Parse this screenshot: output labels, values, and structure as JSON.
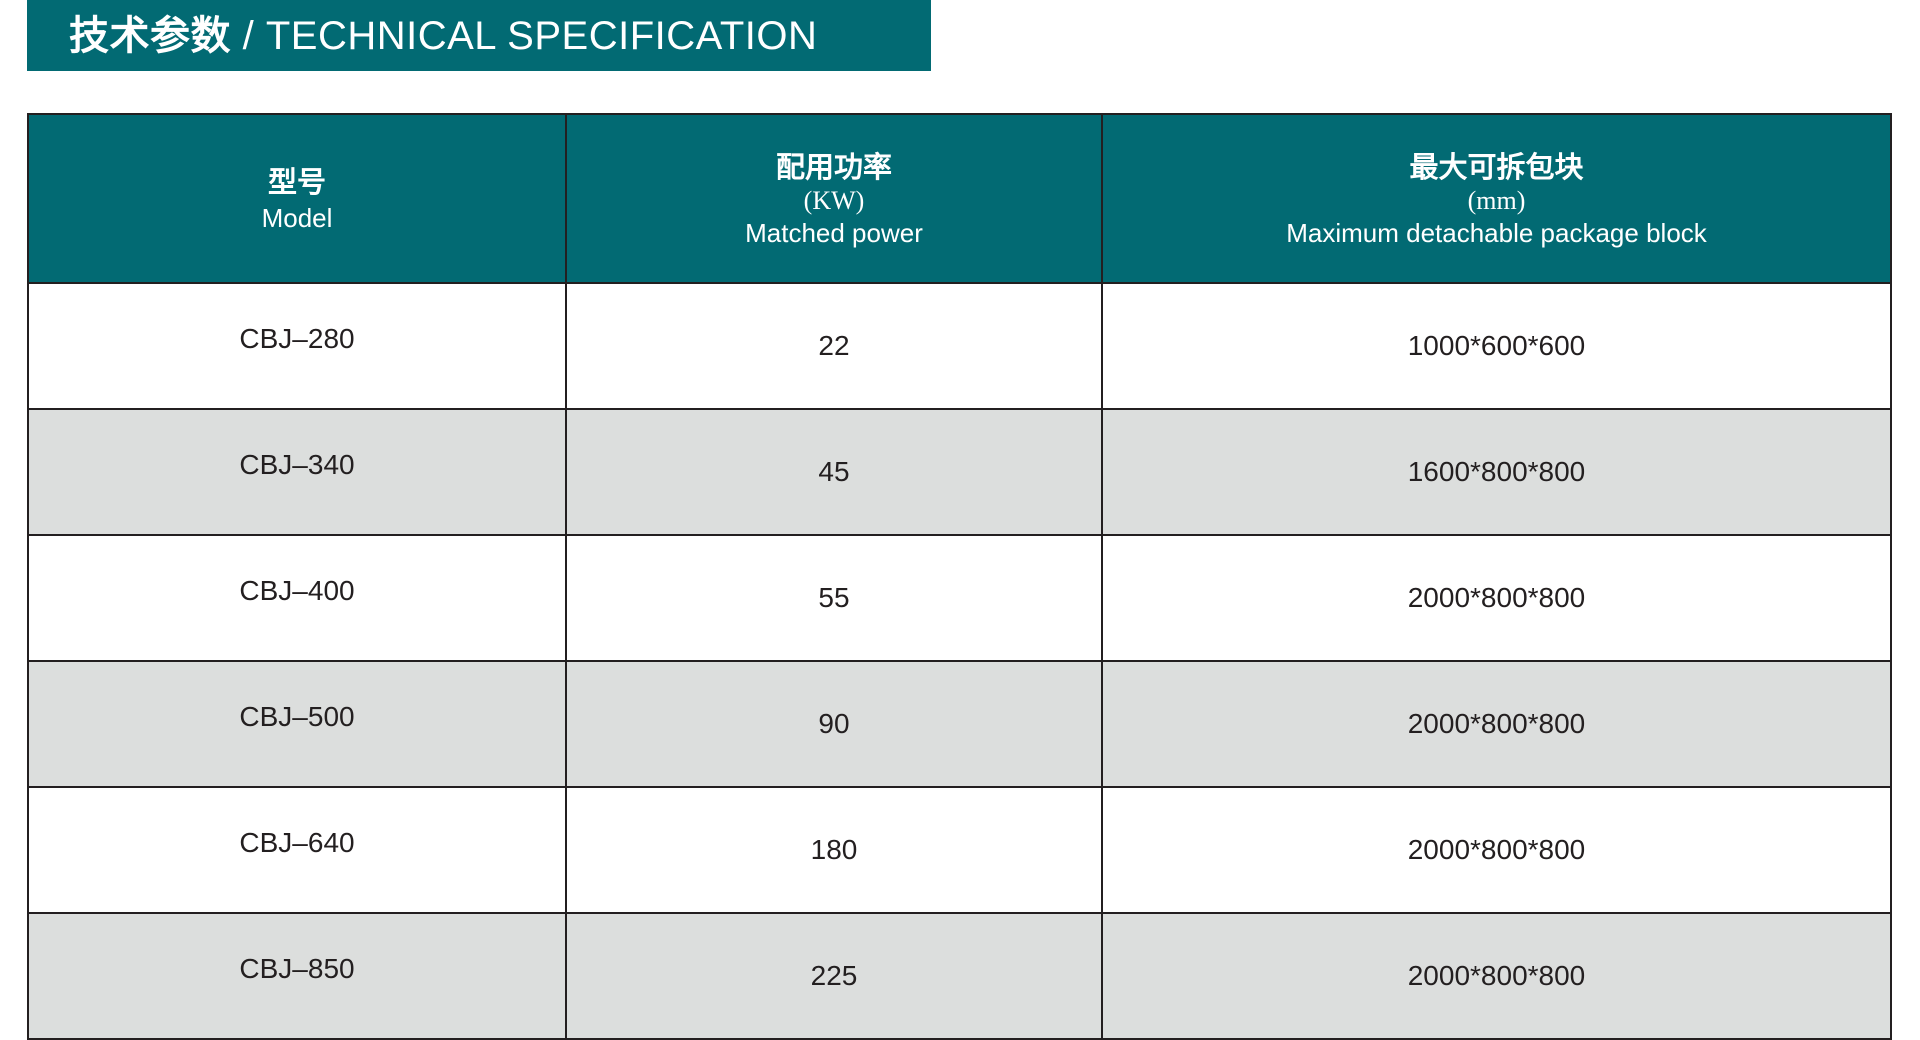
{
  "title": {
    "zh": "技术参数",
    "separator": " / ",
    "en": "TECHNICAL SPECIFICATION"
  },
  "colors": {
    "header_bg": "#026a73",
    "alt_row_bg": "#dcdedd",
    "border": "#231f20"
  },
  "table": {
    "headers": [
      {
        "zh": "型号",
        "unit": "",
        "en": "Model"
      },
      {
        "zh": "配用功率",
        "unit": "(KW)",
        "en": "Matched power"
      },
      {
        "zh": "最大可拆包块",
        "unit": "(mm)",
        "en": "Maximum detachable package block"
      }
    ],
    "rows": [
      [
        "CBJ–280",
        "22",
        "1000*600*600"
      ],
      [
        "CBJ–340",
        "45",
        "1600*800*800"
      ],
      [
        "CBJ–400",
        "55",
        "2000*800*800"
      ],
      [
        "CBJ–500",
        "90",
        "2000*800*800"
      ],
      [
        "CBJ–640",
        "180",
        "2000*800*800"
      ],
      [
        "CBJ–850",
        "225",
        "2000*800*800"
      ]
    ]
  }
}
